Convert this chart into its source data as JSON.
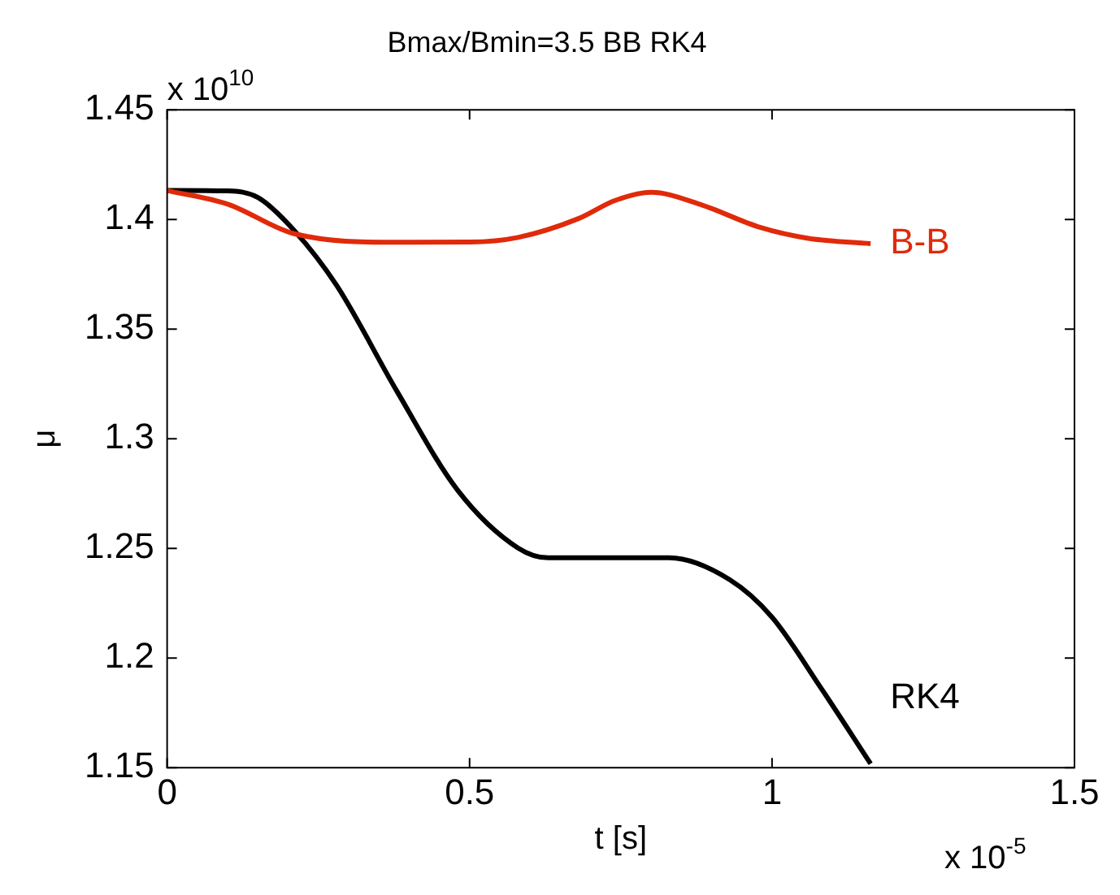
{
  "chart_data": {
    "type": "line",
    "title": "Bmax/Bmin=3.5 BB RK4",
    "xlabel": "t [s]",
    "ylabel": "μ",
    "annotations": [
      "x 10$^{10}$",
      "x 10$^{-5}$"
    ],
    "xlim": [
      0,
      1.5
    ],
    "xticks": [
      0,
      0.5,
      1,
      1.5
    ],
    "ylim": [
      1.15,
      1.45
    ],
    "yticks": [
      1.15,
      1.2,
      1.25,
      1.3,
      1.35,
      1.4,
      1.45
    ],
    "grid": false,
    "legend": false,
    "marker": "none",
    "line_style": "solid",
    "series": [
      {
        "name": "B-B",
        "color": "#e02a0a",
        "x": [
          0,
          0.1,
          0.21,
          0.38,
          0.5,
          0.58,
          0.68,
          0.74,
          0.8,
          0.88,
          0.98,
          1.06,
          1.163
        ],
        "values": [
          1.4132,
          1.407,
          1.3935,
          1.3896,
          1.3897,
          1.3918,
          1.4004,
          1.4086,
          1.4124,
          1.407,
          1.3964,
          1.3914,
          1.389
        ]
      },
      {
        "name": "RK4",
        "color": "#000000",
        "x": [
          0,
          0.1,
          0.15,
          0.21,
          0.28,
          0.38,
          0.48,
          0.58,
          0.63,
          0.83,
          0.93,
          1.0,
          1.08,
          1.163
        ],
        "values": [
          1.4132,
          1.413,
          1.41,
          1.395,
          1.37,
          1.3216,
          1.2766,
          1.2502,
          1.2457,
          1.2457,
          1.2357,
          1.2186,
          1.1867,
          1.1518
        ]
      }
    ]
  }
}
